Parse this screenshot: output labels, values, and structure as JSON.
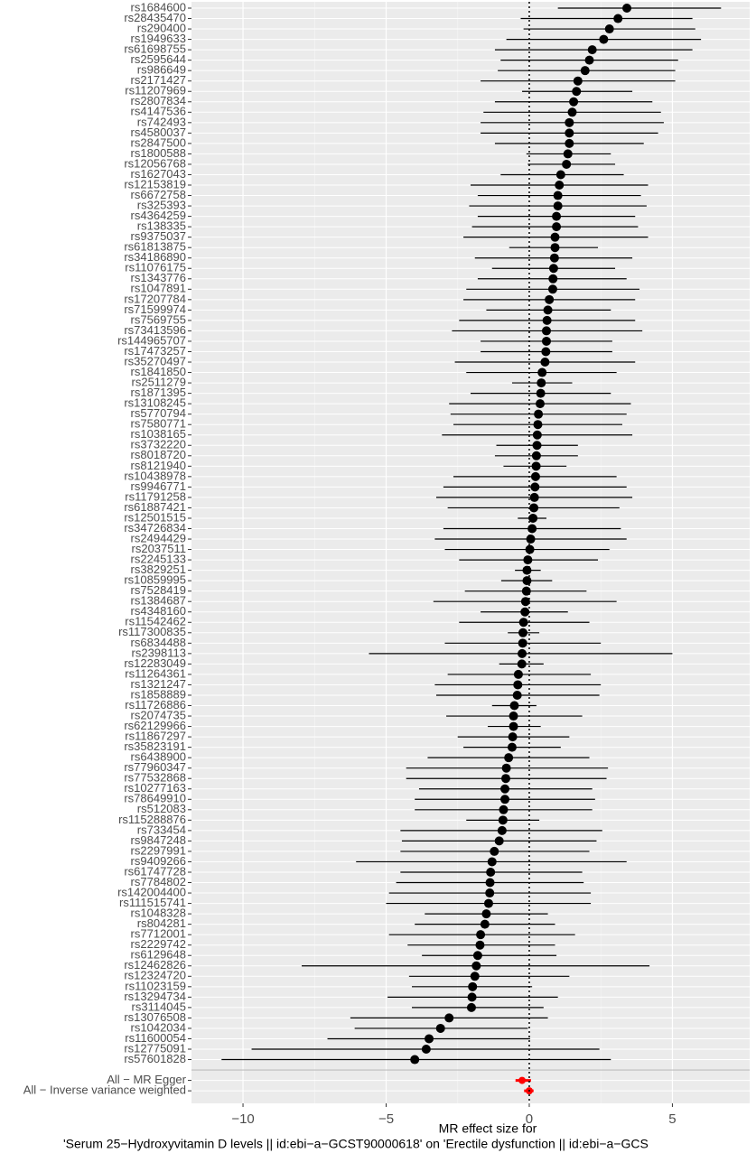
{
  "chart_data": {
    "type": "forest",
    "xlabel": [
      "MR effect size for",
      "'Serum 25−Hydroxyvitamin D levels || id:ebi−a−GCST90000618' on 'Erectile dysfunction || id:ebi−a−GCS"
    ],
    "xlim": [
      -11.8,
      7.7
    ],
    "xticks": [
      {
        "value": -10,
        "label": "−10"
      },
      {
        "value": -5,
        "label": "−5"
      },
      0,
      5
    ],
    "reference_line": 0,
    "grid": true,
    "groups": [
      {
        "color": "#000000",
        "categories": [
          "rs1684600",
          "rs28435470",
          "rs290400",
          "rs1949633",
          "rs61698755",
          "rs2595644",
          "rs986649",
          "rs2171427",
          "rs11207969",
          "rs2807834",
          "rs4147536",
          "rs742493",
          "rs4580037",
          "rs2847500",
          "rs1800588",
          "rs12056768",
          "rs1627043",
          "rs12153819",
          "rs6672758",
          "rs325393",
          "rs4364259",
          "rs138335",
          "rs9375037",
          "rs61813875",
          "rs34186890",
          "rs11076175",
          "rs1343776",
          "rs1047891",
          "rs17207784",
          "rs71599974",
          "rs7569755",
          "rs73413596",
          "rs144965707",
          "rs17473257",
          "rs35270497",
          "rs1841850",
          "rs2511279",
          "rs1871395",
          "rs13108245",
          "rs5770794",
          "rs7580771",
          "rs1038165",
          "rs3732220",
          "rs8018720",
          "rs8121940",
          "rs10438978",
          "rs9946771",
          "rs11791258",
          "rs61887421",
          "rs12501515",
          "rs34726834",
          "rs2494429",
          "rs2037511",
          "rs2245133",
          "rs3829251",
          "rs10859995",
          "rs7528419",
          "rs1384687",
          "rs4348160",
          "rs11542462",
          "rs117300835",
          "rs6834488",
          "rs2398113",
          "rs12283049",
          "rs11264361",
          "rs1321247",
          "rs1858889",
          "rs11726886",
          "rs2074735",
          "rs62129966",
          "rs11867297",
          "rs35823191",
          "rs6438900",
          "rs77960347",
          "rs77532868",
          "rs10277163",
          "rs78649910",
          "rs512083",
          "rs115288876",
          "rs733454",
          "rs9847248",
          "rs2297991",
          "rs9409266",
          "rs61747728",
          "rs7784802",
          "rs142004400",
          "rs111515741",
          "rs1048328",
          "rs804281",
          "rs7712001",
          "rs2229742",
          "rs6129648",
          "rs12462826",
          "rs12324720",
          "rs11023159",
          "rs13294734",
          "rs3114045",
          "rs13076508",
          "rs1042034",
          "rs11600054",
          "rs12775091",
          "rs57601828"
        ],
        "values": [
          3.41,
          3.1,
          2.8,
          2.6,
          2.2,
          2.1,
          1.95,
          1.7,
          1.65,
          1.55,
          1.5,
          1.4,
          1.4,
          1.4,
          1.35,
          1.3,
          1.1,
          1.05,
          1.0,
          1.0,
          0.95,
          0.95,
          0.9,
          0.9,
          0.88,
          0.85,
          0.83,
          0.82,
          0.7,
          0.65,
          0.62,
          0.6,
          0.6,
          0.58,
          0.55,
          0.45,
          0.42,
          0.4,
          0.38,
          0.32,
          0.3,
          0.28,
          0.27,
          0.25,
          0.24,
          0.22,
          0.2,
          0.18,
          0.16,
          0.13,
          0.1,
          0.05,
          0.02,
          -0.05,
          -0.08,
          -0.08,
          -0.1,
          -0.13,
          -0.15,
          -0.2,
          -0.22,
          -0.23,
          -0.25,
          -0.26,
          -0.38,
          -0.4,
          -0.42,
          -0.52,
          -0.55,
          -0.55,
          -0.58,
          -0.6,
          -0.72,
          -0.8,
          -0.82,
          -0.85,
          -0.85,
          -0.9,
          -0.92,
          -0.95,
          -1.05,
          -1.22,
          -1.3,
          -1.35,
          -1.37,
          -1.38,
          -1.42,
          -1.5,
          -1.55,
          -1.7,
          -1.72,
          -1.8,
          -1.85,
          -1.9,
          -1.98,
          -2.0,
          -2.02,
          -2.8,
          -3.1,
          -3.5,
          -3.6,
          -4.0
        ],
        "lower": [
          1.0,
          -0.3,
          -0.2,
          -0.8,
          -1.2,
          -1.0,
          -1.1,
          -1.7,
          -0.25,
          -1.2,
          -1.6,
          -1.7,
          -1.7,
          -1.2,
          -0.1,
          -0.05,
          -1.0,
          -2.05,
          -1.8,
          -2.1,
          -1.8,
          -2.0,
          -2.3,
          -0.7,
          -1.9,
          -1.3,
          -1.8,
          -2.2,
          -2.3,
          -1.5,
          -2.45,
          -2.7,
          -1.7,
          -1.7,
          -2.6,
          -2.2,
          -0.6,
          -2.05,
          -2.8,
          -2.75,
          -2.65,
          -3.05,
          -1.15,
          -1.2,
          -0.9,
          -2.65,
          -3.0,
          -3.25,
          -2.85,
          -0.4,
          -3.0,
          -3.3,
          -2.95,
          -2.45,
          -0.5,
          -0.98,
          -2.25,
          -3.35,
          -1.7,
          -2.45,
          -0.75,
          -2.95,
          -5.6,
          -1.05,
          -2.85,
          -3.3,
          -3.25,
          -1.3,
          -2.9,
          -1.45,
          -2.5,
          -2.3,
          -3.55,
          -4.3,
          -4.3,
          -3.85,
          -4.0,
          -4.0,
          -2.2,
          -4.5,
          -4.45,
          -4.5,
          -6.05,
          -4.5,
          -4.65,
          -4.9,
          -5.0,
          -3.65,
          -4.0,
          -4.9,
          -4.25,
          -3.75,
          -7.95,
          -4.2,
          -4.1,
          -4.95,
          -4.1,
          -6.25,
          -6.1,
          -7.05,
          -9.7,
          -10.75
        ],
        "upper": [
          6.7,
          5.7,
          5.8,
          6.0,
          5.7,
          5.2,
          5.1,
          5.1,
          3.6,
          4.3,
          4.6,
          4.7,
          4.5,
          4.0,
          2.85,
          3.0,
          3.3,
          4.15,
          3.9,
          4.1,
          3.7,
          3.8,
          4.15,
          2.4,
          3.6,
          3.0,
          3.4,
          3.85,
          3.7,
          2.85,
          3.7,
          3.95,
          2.9,
          2.9,
          3.7,
          3.05,
          1.5,
          2.85,
          3.55,
          3.4,
          3.25,
          3.6,
          1.7,
          1.7,
          1.3,
          3.05,
          3.4,
          3.6,
          3.15,
          0.6,
          3.2,
          3.4,
          2.8,
          2.4,
          0.4,
          0.8,
          2.0,
          3.05,
          1.35,
          2.1,
          0.35,
          2.5,
          5.0,
          0.5,
          2.15,
          2.5,
          2.45,
          0.25,
          1.85,
          0.4,
          1.4,
          1.1,
          2.1,
          2.75,
          2.7,
          2.2,
          2.3,
          2.2,
          0.35,
          2.55,
          2.35,
          2.1,
          3.4,
          1.85,
          1.9,
          2.15,
          2.15,
          0.65,
          0.9,
          1.6,
          0.9,
          0.95,
          4.2,
          1.4,
          0.1,
          1.0,
          0.5,
          0.65,
          -0.05,
          0.03,
          2.45,
          2.85
        ]
      },
      {
        "color": "#ff0000",
        "categories": [
          "All − MR Egger",
          "All − Inverse variance weighted"
        ],
        "values": [
          -0.25,
          0.0
        ],
        "lower": [
          -0.48,
          -0.18
        ],
        "upper": [
          0.06,
          0.15
        ]
      }
    ]
  }
}
